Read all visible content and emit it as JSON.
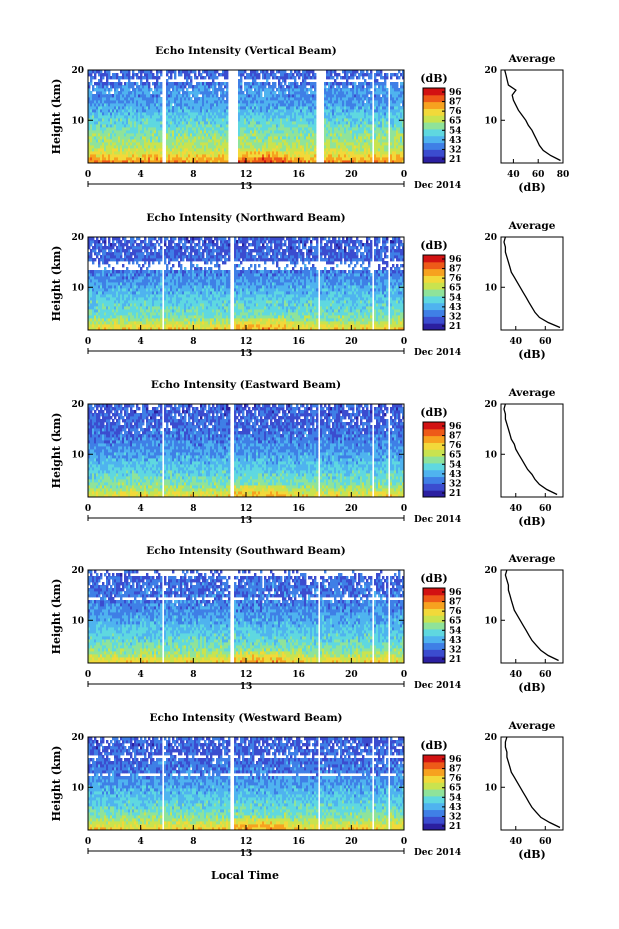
{
  "figure": {
    "xlabel": "Local Time",
    "date_label": "Dec 2014",
    "day_label": "13",
    "avg_title": "Average",
    "avg_xlabel": "(dB)",
    "cbar_label": "(dB)",
    "colors": {
      "colormap": [
        "#2b1fa0",
        "#3b4ccf",
        "#3f7fe6",
        "#4fb3ef",
        "#5fd8e0",
        "#8fe39a",
        "#c9e34f",
        "#f2d93a",
        "#f7a21f",
        "#ee5a18",
        "#d21212"
      ],
      "axis": "#000000",
      "background": "#ffffff"
    }
  },
  "chart_data": [
    {
      "type": "heatmap",
      "title": "Echo Intensity (Vertical Beam)",
      "ylabel": "Height (km)",
      "x_ticks": [
        "0",
        "4",
        "8",
        "12",
        "16",
        "20",
        "0"
      ],
      "y_ticks": [
        "20",
        "10"
      ],
      "xlim": [
        0,
        24
      ],
      "ylim": [
        1.5,
        20
      ],
      "colorbar_ticks": [
        "96",
        "87",
        "76",
        "65",
        "54",
        "43",
        "32",
        "21"
      ],
      "gaps_hours": [
        [
          5.6,
          5.9
        ],
        [
          10.6,
          11.4
        ],
        [
          17.3,
          17.9
        ],
        [
          21.5,
          21.7
        ],
        [
          22.8,
          23.0
        ]
      ],
      "average_profile": {
        "xlim": [
          30,
          80
        ],
        "x_ticks": [
          "40",
          "60",
          "80"
        ],
        "y_ticks": [
          "20",
          "10"
        ],
        "height_km": [
          2,
          3,
          4,
          5,
          6,
          7,
          8,
          9,
          10,
          11,
          12,
          13,
          14,
          15,
          16,
          17,
          18,
          19,
          20
        ],
        "db": [
          78,
          70,
          64,
          61,
          59,
          57,
          55,
          52,
          50,
          47,
          44,
          42,
          40,
          39,
          42,
          36,
          35,
          34,
          33
        ]
      }
    },
    {
      "type": "heatmap",
      "title": "Echo Intensity (Northward Beam)",
      "ylabel": "Height (km)",
      "x_ticks": [
        "0",
        "4",
        "8",
        "12",
        "16",
        "20",
        "0"
      ],
      "y_ticks": [
        "20",
        "10"
      ],
      "xlim": [
        0,
        24
      ],
      "ylim": [
        1.5,
        20
      ],
      "colorbar_ticks": [
        "96",
        "87",
        "76",
        "65",
        "54",
        "43",
        "32",
        "21"
      ],
      "gaps_hours": [
        [
          5.6,
          5.8
        ],
        [
          10.8,
          11.1
        ],
        [
          17.4,
          17.6
        ],
        [
          21.5,
          21.7
        ],
        [
          22.8,
          23.0
        ]
      ],
      "average_profile": {
        "xlim": [
          30,
          72
        ],
        "x_ticks": [
          "40",
          "60"
        ],
        "y_ticks": [
          "20",
          "10"
        ],
        "height_km": [
          2,
          3,
          4,
          5,
          6,
          7,
          8,
          9,
          10,
          11,
          12,
          13,
          14,
          15,
          16,
          17,
          18,
          19,
          20
        ],
        "db": [
          70,
          62,
          56,
          53,
          51,
          49,
          47,
          45,
          43,
          41,
          39,
          37,
          36,
          35,
          34,
          33,
          33,
          32,
          33
        ]
      }
    },
    {
      "type": "heatmap",
      "title": "Echo Intensity (Eastward Beam)",
      "ylabel": "Height (km)",
      "x_ticks": [
        "0",
        "4",
        "8",
        "12",
        "16",
        "20",
        "0"
      ],
      "y_ticks": [
        "20",
        "10"
      ],
      "xlim": [
        0,
        24
      ],
      "ylim": [
        1.5,
        20
      ],
      "colorbar_ticks": [
        "96",
        "87",
        "76",
        "65",
        "54",
        "43",
        "32",
        "21"
      ],
      "gaps_hours": [
        [
          5.6,
          5.8
        ],
        [
          10.8,
          11.1
        ],
        [
          17.4,
          17.6
        ],
        [
          21.5,
          21.7
        ],
        [
          22.8,
          23.0
        ]
      ],
      "average_profile": {
        "xlim": [
          30,
          72
        ],
        "x_ticks": [
          "40",
          "60"
        ],
        "y_ticks": [
          "20",
          "10"
        ],
        "height_km": [
          2,
          3,
          4,
          5,
          6,
          7,
          8,
          9,
          10,
          11,
          12,
          13,
          14,
          15,
          16,
          17,
          18,
          19,
          20
        ],
        "db": [
          68,
          61,
          56,
          53,
          51,
          48,
          46,
          44,
          42,
          40,
          39,
          37,
          36,
          35,
          34,
          33,
          33,
          32,
          33
        ]
      }
    },
    {
      "type": "heatmap",
      "title": "Echo Intensity (Southward Beam)",
      "ylabel": "Height (km)",
      "x_ticks": [
        "0",
        "4",
        "8",
        "12",
        "16",
        "20",
        "0"
      ],
      "y_ticks": [
        "20",
        "10"
      ],
      "xlim": [
        0,
        24
      ],
      "ylim": [
        1.5,
        20
      ],
      "colorbar_ticks": [
        "96",
        "87",
        "76",
        "65",
        "54",
        "43",
        "32",
        "21"
      ],
      "gaps_hours": [
        [
          5.6,
          5.8
        ],
        [
          10.8,
          11.1
        ],
        [
          17.4,
          17.6
        ],
        [
          21.5,
          21.7
        ],
        [
          22.8,
          23.0
        ]
      ],
      "average_profile": {
        "xlim": [
          30,
          72
        ],
        "x_ticks": [
          "40",
          "60"
        ],
        "y_ticks": [
          "20",
          "10"
        ],
        "height_km": [
          2,
          3,
          4,
          5,
          6,
          7,
          8,
          9,
          10,
          11,
          12,
          13,
          14,
          15,
          16,
          17,
          18,
          19,
          20
        ],
        "db": [
          69,
          62,
          57,
          54,
          51,
          49,
          47,
          45,
          43,
          41,
          39,
          38,
          37,
          36,
          35,
          35,
          34,
          33,
          34
        ]
      }
    },
    {
      "type": "heatmap",
      "title": "Echo Intensity (Westward Beam)",
      "ylabel": "Height (km)",
      "x_ticks": [
        "0",
        "4",
        "8",
        "12",
        "16",
        "20",
        "0"
      ],
      "y_ticks": [
        "20",
        "10"
      ],
      "xlim": [
        0,
        24
      ],
      "ylim": [
        1.5,
        20
      ],
      "colorbar_ticks": [
        "96",
        "87",
        "76",
        "65",
        "54",
        "43",
        "32",
        "21"
      ],
      "gaps_hours": [
        [
          5.6,
          5.8
        ],
        [
          10.8,
          11.1
        ],
        [
          17.4,
          17.6
        ],
        [
          21.5,
          21.7
        ],
        [
          22.8,
          23.0
        ]
      ],
      "average_profile": {
        "xlim": [
          30,
          72
        ],
        "x_ticks": [
          "40",
          "60"
        ],
        "y_ticks": [
          "20",
          "10"
        ],
        "height_km": [
          2,
          3,
          4,
          5,
          6,
          7,
          8,
          9,
          10,
          11,
          12,
          13,
          14,
          15,
          16,
          17,
          18,
          19,
          20
        ],
        "db": [
          70,
          63,
          57,
          54,
          51,
          49,
          47,
          45,
          43,
          41,
          39,
          37,
          36,
          35,
          34,
          34,
          33,
          33,
          34
        ]
      }
    }
  ]
}
